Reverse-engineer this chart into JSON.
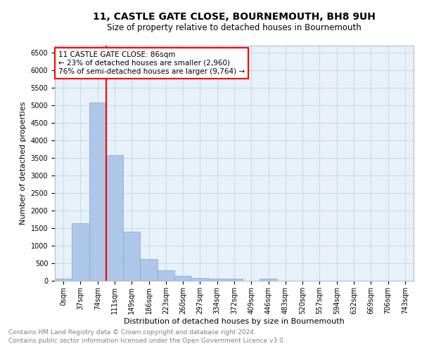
{
  "title": "11, CASTLE GATE CLOSE, BOURNEMOUTH, BH8 9UH",
  "subtitle": "Size of property relative to detached houses in Bournemouth",
  "xlabel": "Distribution of detached houses by size in Bournemouth",
  "ylabel": "Number of detached properties",
  "bar_color": "#aec6e8",
  "bar_edge_color": "#7aaad0",
  "grid_color": "#c8d8e8",
  "background_color": "#e8f0f8",
  "bin_labels": [
    "0sqm",
    "37sqm",
    "74sqm",
    "111sqm",
    "149sqm",
    "186sqm",
    "223sqm",
    "260sqm",
    "297sqm",
    "334sqm",
    "372sqm",
    "409sqm",
    "446sqm",
    "483sqm",
    "520sqm",
    "557sqm",
    "594sqm",
    "632sqm",
    "669sqm",
    "706sqm",
    "743sqm"
  ],
  "bar_heights": [
    70,
    1640,
    5090,
    3580,
    1400,
    620,
    310,
    150,
    90,
    55,
    70,
    0,
    60,
    0,
    0,
    0,
    0,
    0,
    0,
    0,
    0
  ],
  "vline_x": 2.5,
  "annotation_title": "11 CASTLE GATE CLOSE: 86sqm",
  "annotation_line1": "← 23% of detached houses are smaller (2,960)",
  "annotation_line2": "76% of semi-detached houses are larger (9,764) →",
  "annotation_box_color": "white",
  "annotation_box_edge_color": "red",
  "vline_color": "red",
  "ylim": [
    0,
    6700
  ],
  "yticks": [
    0,
    500,
    1000,
    1500,
    2000,
    2500,
    3000,
    3500,
    4000,
    4500,
    5000,
    5500,
    6000,
    6500
  ],
  "footer_line1": "Contains HM Land Registry data © Crown copyright and database right 2024.",
  "footer_line2": "Contains public sector information licensed under the Open Government Licence v3.0.",
  "title_fontsize": 10,
  "subtitle_fontsize": 8.5,
  "xlabel_fontsize": 8,
  "ylabel_fontsize": 8,
  "tick_fontsize": 7,
  "footer_fontsize": 6.5,
  "annotation_fontsize": 7.5
}
